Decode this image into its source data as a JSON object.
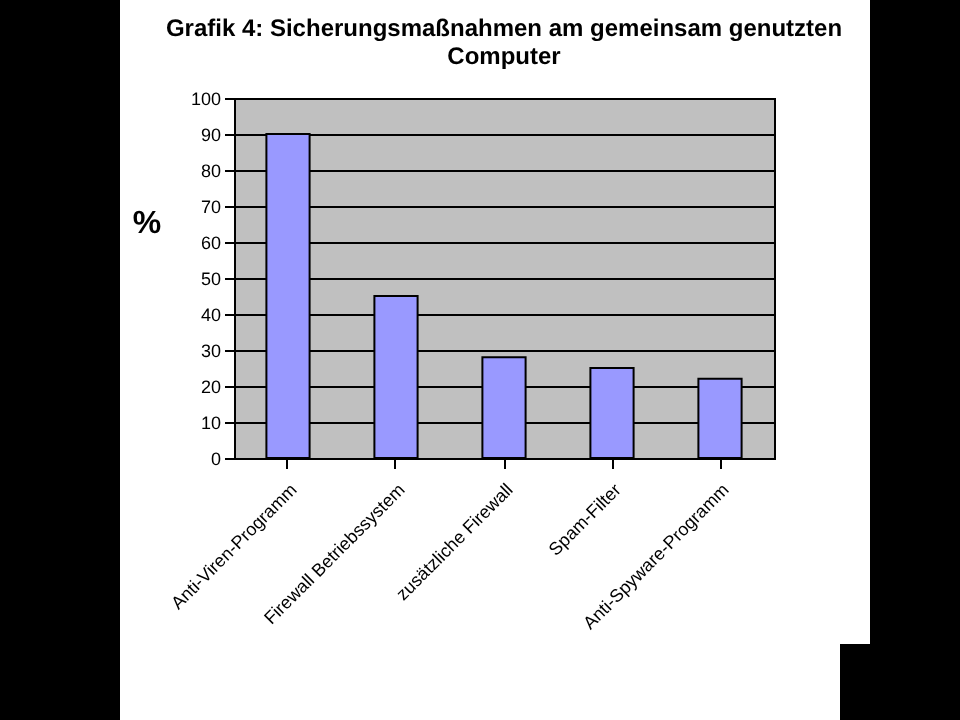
{
  "chart_data": {
    "type": "bar",
    "title": "Grafik 4:  Sicherungsmaßnahmen am gemeinsam genutzten Computer",
    "ylabel": "%",
    "categories": [
      "Anti-Viren-Programm",
      "Firewall Betriebssystem",
      "zusätzliche Firewall",
      "Spam-Filter",
      "Anti-Spyware-Programm"
    ],
    "values": [
      90,
      45,
      28,
      25,
      22
    ],
    "color": "#9999ff",
    "ylim": [
      0,
      100
    ],
    "yticks": [
      0,
      10,
      20,
      30,
      40,
      50,
      60,
      70,
      80,
      90,
      100
    ],
    "grid": "y"
  }
}
